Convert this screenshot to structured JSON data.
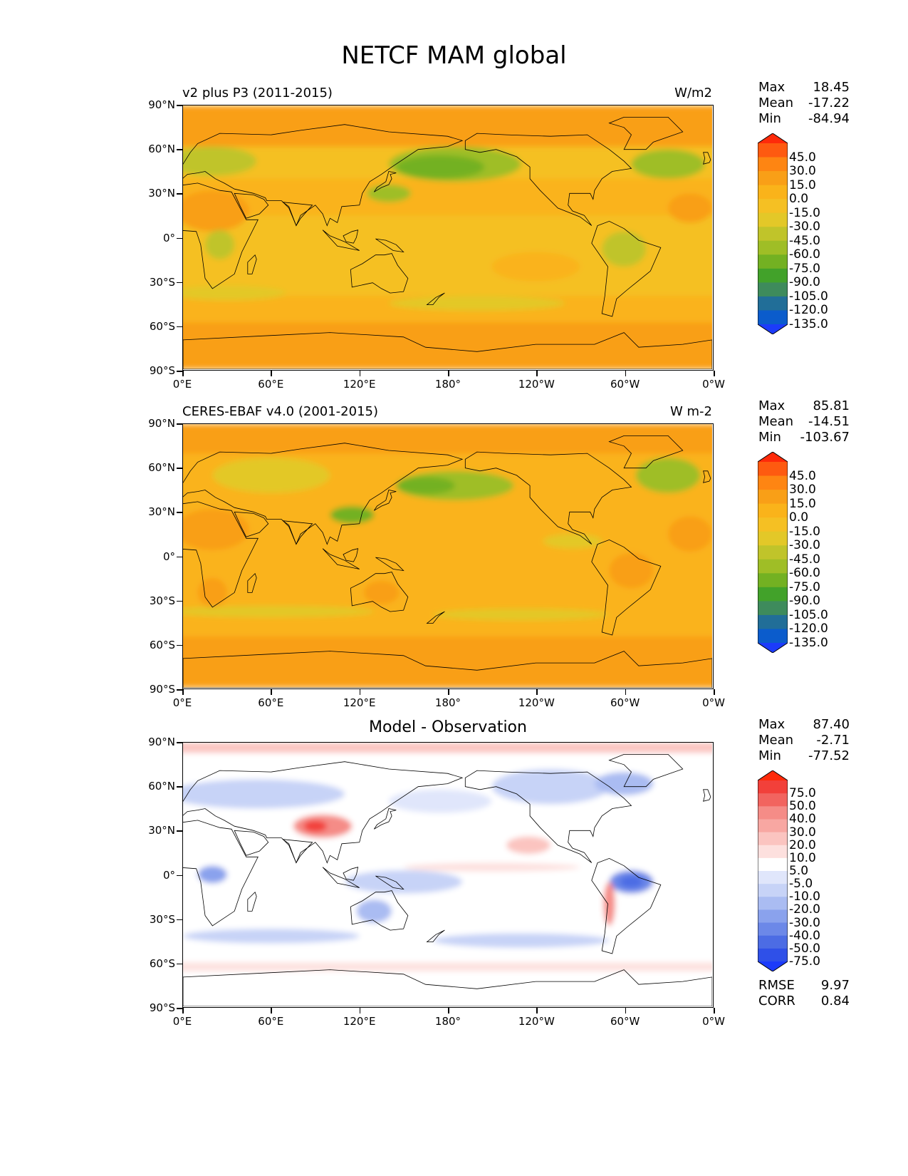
{
  "figure_title": "NETCF MAM global",
  "axes": {
    "lat_labels": [
      "90°N",
      "60°N",
      "30°N",
      "0°",
      "30°S",
      "60°S",
      "90°S"
    ],
    "lon_labels": [
      "0°E",
      "60°E",
      "120°E",
      "180°",
      "120°W",
      "60°W",
      "0°W"
    ]
  },
  "panels": [
    {
      "title_left": "v2 plus P3 (2011-2015)",
      "title_right": "W/m2",
      "title_center": "",
      "stats": [
        {
          "label": "Max",
          "value": "18.45"
        },
        {
          "label": "Mean",
          "value": "-17.22"
        },
        {
          "label": "Min",
          "value": "-84.94"
        }
      ],
      "colorbar_ticks": [
        "45.0",
        "30.0",
        "15.0",
        "0.0",
        "-15.0",
        "-30.0",
        "-45.0",
        "-60.0",
        "-75.0",
        "-90.0",
        "-105.0",
        "-120.0",
        "-135.0"
      ],
      "extra": []
    },
    {
      "title_left": "CERES-EBAF v4.0 (2001-2015)",
      "title_right": "W m-2",
      "title_center": "",
      "stats": [
        {
          "label": "Max",
          "value": "85.81"
        },
        {
          "label": "Mean",
          "value": "-14.51"
        },
        {
          "label": "Min",
          "value": "-103.67"
        }
      ],
      "colorbar_ticks": [
        "45.0",
        "30.0",
        "15.0",
        "0.0",
        "-15.0",
        "-30.0",
        "-45.0",
        "-60.0",
        "-75.0",
        "-90.0",
        "-105.0",
        "-120.0",
        "-135.0"
      ],
      "extra": []
    },
    {
      "title_left": "",
      "title_right": "",
      "title_center": "Model - Observation",
      "stats": [
        {
          "label": "Max",
          "value": "87.40"
        },
        {
          "label": "Mean",
          "value": "-2.71"
        },
        {
          "label": "Min",
          "value": "-77.52"
        }
      ],
      "colorbar_ticks": [
        "75.0",
        "50.0",
        "40.0",
        "30.0",
        "20.0",
        "10.0",
        "5.0",
        "-5.0",
        "-10.0",
        "-20.0",
        "-30.0",
        "-40.0",
        "-50.0",
        "-75.0"
      ],
      "extra": [
        {
          "label": "RMSE",
          "value": "9.97"
        },
        {
          "label": "CORR",
          "value": "0.84"
        }
      ]
    }
  ],
  "colors": {
    "abs_colorbar": [
      "#fe2a0a",
      "#fe5a10",
      "#fe8512",
      "#f99f17",
      "#fab31a",
      "#f5c023",
      "#e3c828",
      "#c0c42a",
      "#9fbe26",
      "#73b122",
      "#42a22a",
      "#3e8b5c",
      "#216e98",
      "#0b5ccc",
      "#1c3bfa"
    ],
    "diff_colorbar": [
      "#fe2a0a",
      "#f2403a",
      "#f2645f",
      "#f58c87",
      "#f8a7a2",
      "#fbc4c0",
      "#fde0de",
      "#ffffff",
      "#e0e6fb",
      "#c7d3f7",
      "#aabcf2",
      "#8aa2ed",
      "#6c88e8",
      "#4c6ce4",
      "#2f50e8",
      "#1c3bfa"
    ]
  }
}
